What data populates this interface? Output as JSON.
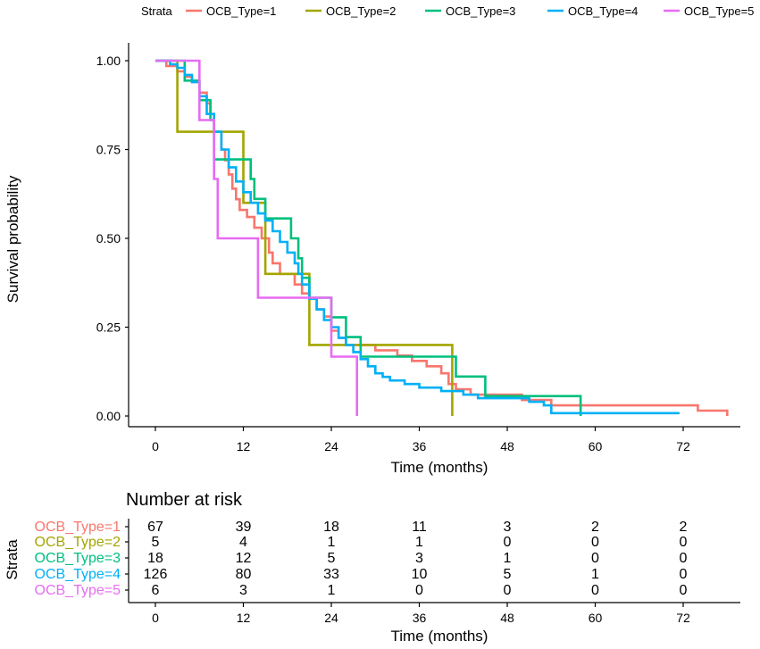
{
  "chart_data": {
    "type": "line",
    "subtype": "kaplan-meier",
    "title": "",
    "legend": {
      "title": "Strata",
      "position": "top",
      "entries": [
        "OCB_Type=1",
        "OCB_Type=2",
        "OCB_Type=3",
        "OCB_Type=4",
        "OCB_Type=5"
      ]
    },
    "xlabel": "Time (months)",
    "ylabel": "Survival probability",
    "xlim": [
      0,
      78
    ],
    "ylim": [
      0,
      1
    ],
    "xticks": [
      "0",
      "12",
      "24",
      "36",
      "48",
      "60",
      "72"
    ],
    "yticks": [
      "0.00",
      "0.25",
      "0.50",
      "0.75",
      "1.00"
    ],
    "series": [
      {
        "name": "OCB_Type=1",
        "color": "#F8766D",
        "points": [
          [
            0,
            1.0
          ],
          [
            1.5,
            1.0
          ],
          [
            1.5,
            0.985
          ],
          [
            3,
            0.985
          ],
          [
            3,
            0.97
          ],
          [
            4,
            0.97
          ],
          [
            4,
            0.955
          ],
          [
            5,
            0.955
          ],
          [
            5,
            0.94
          ],
          [
            6,
            0.94
          ],
          [
            6,
            0.91
          ],
          [
            7,
            0.91
          ],
          [
            7,
            0.88
          ],
          [
            7.5,
            0.88
          ],
          [
            7.5,
            0.85
          ],
          [
            8,
            0.85
          ],
          [
            8,
            0.8
          ],
          [
            9,
            0.8
          ],
          [
            9,
            0.75
          ],
          [
            9.5,
            0.75
          ],
          [
            9.5,
            0.72
          ],
          [
            10,
            0.72
          ],
          [
            10,
            0.68
          ],
          [
            10.5,
            0.68
          ],
          [
            10.5,
            0.64
          ],
          [
            11,
            0.64
          ],
          [
            11,
            0.61
          ],
          [
            11.5,
            0.61
          ],
          [
            11.5,
            0.58
          ],
          [
            12.5,
            0.58
          ],
          [
            12.5,
            0.56
          ],
          [
            13.5,
            0.56
          ],
          [
            13.5,
            0.53
          ],
          [
            14.5,
            0.53
          ],
          [
            14.5,
            0.5
          ],
          [
            15.5,
            0.5
          ],
          [
            15.5,
            0.46
          ],
          [
            16,
            0.46
          ],
          [
            16,
            0.43
          ],
          [
            17,
            0.43
          ],
          [
            17,
            0.4
          ],
          [
            19,
            0.4
          ],
          [
            19,
            0.37
          ],
          [
            20,
            0.37
          ],
          [
            20,
            0.345
          ],
          [
            21,
            0.345
          ],
          [
            21,
            0.33
          ],
          [
            22,
            0.33
          ],
          [
            22,
            0.3
          ],
          [
            23,
            0.3
          ],
          [
            23,
            0.28
          ],
          [
            24,
            0.28
          ],
          [
            24,
            0.24
          ],
          [
            25,
            0.24
          ],
          [
            25,
            0.22
          ],
          [
            26,
            0.22
          ],
          [
            26,
            0.2
          ],
          [
            30,
            0.2
          ],
          [
            30,
            0.185
          ],
          [
            33,
            0.185
          ],
          [
            33,
            0.17
          ],
          [
            35,
            0.17
          ],
          [
            35,
            0.155
          ],
          [
            37,
            0.155
          ],
          [
            37,
            0.14
          ],
          [
            39,
            0.14
          ],
          [
            39,
            0.12
          ],
          [
            40,
            0.12
          ],
          [
            40,
            0.09
          ],
          [
            41,
            0.09
          ],
          [
            41,
            0.075
          ],
          [
            43,
            0.075
          ],
          [
            43,
            0.06
          ],
          [
            50,
            0.06
          ],
          [
            50,
            0.045
          ],
          [
            54,
            0.045
          ],
          [
            54,
            0.03
          ],
          [
            72,
            0.03
          ],
          [
            72,
            0.03
          ],
          [
            74,
            0.03
          ],
          [
            74,
            0.015
          ],
          [
            78,
            0.015
          ],
          [
            78,
            0.0
          ]
        ]
      },
      {
        "name": "OCB_Type=2",
        "color": "#A3A500",
        "points": [
          [
            0,
            1.0
          ],
          [
            3,
            1.0
          ],
          [
            3,
            0.8
          ],
          [
            12,
            0.8
          ],
          [
            12,
            0.6
          ],
          [
            15,
            0.6
          ],
          [
            15,
            0.4
          ],
          [
            18,
            0.4
          ],
          [
            18,
            0.4
          ],
          [
            21,
            0.4
          ],
          [
            21,
            0.2
          ],
          [
            40.5,
            0.2
          ],
          [
            40.5,
            0.0
          ]
        ]
      },
      {
        "name": "OCB_Type=3",
        "color": "#00BF7D",
        "points": [
          [
            0,
            1.0
          ],
          [
            4,
            1.0
          ],
          [
            4,
            0.944
          ],
          [
            6,
            0.944
          ],
          [
            6,
            0.889
          ],
          [
            7.5,
            0.889
          ],
          [
            7.5,
            0.833
          ],
          [
            8,
            0.833
          ],
          [
            8,
            0.722
          ],
          [
            13,
            0.722
          ],
          [
            13,
            0.667
          ],
          [
            13.5,
            0.667
          ],
          [
            13.5,
            0.611
          ],
          [
            15,
            0.611
          ],
          [
            15,
            0.556
          ],
          [
            18.5,
            0.556
          ],
          [
            18.5,
            0.5
          ],
          [
            19.5,
            0.5
          ],
          [
            19.5,
            0.444
          ],
          [
            20,
            0.444
          ],
          [
            20,
            0.389
          ],
          [
            21,
            0.389
          ],
          [
            21,
            0.333
          ],
          [
            24,
            0.333
          ],
          [
            24,
            0.278
          ],
          [
            26,
            0.278
          ],
          [
            26,
            0.222
          ],
          [
            28,
            0.222
          ],
          [
            28,
            0.167
          ],
          [
            41,
            0.167
          ],
          [
            41,
            0.111
          ],
          [
            45,
            0.111
          ],
          [
            45,
            0.056
          ],
          [
            58,
            0.056
          ],
          [
            58,
            0.0
          ]
        ]
      },
      {
        "name": "OCB_Type=4",
        "color": "#00B0F6",
        "points": [
          [
            0,
            1.0
          ],
          [
            2,
            1.0
          ],
          [
            2,
            0.99
          ],
          [
            3,
            0.99
          ],
          [
            3,
            0.98
          ],
          [
            4,
            0.98
          ],
          [
            4,
            0.96
          ],
          [
            5,
            0.96
          ],
          [
            5,
            0.94
          ],
          [
            6,
            0.94
          ],
          [
            6,
            0.9
          ],
          [
            7,
            0.9
          ],
          [
            7,
            0.85
          ],
          [
            8,
            0.85
          ],
          [
            8,
            0.8
          ],
          [
            9,
            0.8
          ],
          [
            9,
            0.75
          ],
          [
            10,
            0.75
          ],
          [
            10,
            0.7
          ],
          [
            11,
            0.7
          ],
          [
            11,
            0.66
          ],
          [
            12,
            0.66
          ],
          [
            12,
            0.63
          ],
          [
            13,
            0.63
          ],
          [
            13,
            0.6
          ],
          [
            14,
            0.6
          ],
          [
            14,
            0.57
          ],
          [
            15,
            0.57
          ],
          [
            15,
            0.55
          ],
          [
            16,
            0.55
          ],
          [
            16,
            0.52
          ],
          [
            17,
            0.52
          ],
          [
            17,
            0.49
          ],
          [
            18,
            0.49
          ],
          [
            18,
            0.46
          ],
          [
            19,
            0.46
          ],
          [
            19,
            0.43
          ],
          [
            19.5,
            0.43
          ],
          [
            19.5,
            0.4
          ],
          [
            20,
            0.4
          ],
          [
            20,
            0.37
          ],
          [
            21,
            0.37
          ],
          [
            21,
            0.33
          ],
          [
            22,
            0.33
          ],
          [
            22,
            0.3
          ],
          [
            23,
            0.3
          ],
          [
            23,
            0.27
          ],
          [
            24,
            0.27
          ],
          [
            24,
            0.25
          ],
          [
            25,
            0.25
          ],
          [
            25,
            0.22
          ],
          [
            26,
            0.22
          ],
          [
            26,
            0.2
          ],
          [
            27,
            0.2
          ],
          [
            27,
            0.18
          ],
          [
            28,
            0.18
          ],
          [
            28,
            0.16
          ],
          [
            29,
            0.16
          ],
          [
            29,
            0.14
          ],
          [
            30,
            0.14
          ],
          [
            30,
            0.12
          ],
          [
            31,
            0.12
          ],
          [
            31,
            0.11
          ],
          [
            32,
            0.11
          ],
          [
            32,
            0.1
          ],
          [
            34,
            0.1
          ],
          [
            34,
            0.09
          ],
          [
            36,
            0.09
          ],
          [
            36,
            0.08
          ],
          [
            39,
            0.08
          ],
          [
            39,
            0.07
          ],
          [
            42,
            0.07
          ],
          [
            42,
            0.06
          ],
          [
            44,
            0.06
          ],
          [
            44,
            0.05
          ],
          [
            51,
            0.05
          ],
          [
            51,
            0.04
          ],
          [
            53,
            0.04
          ],
          [
            53,
            0.03
          ],
          [
            54,
            0.03
          ],
          [
            54,
            0.008
          ],
          [
            71.5,
            0.008
          ]
        ]
      },
      {
        "name": "OCB_Type=5",
        "color": "#E76BF3",
        "points": [
          [
            0,
            1.0
          ],
          [
            6,
            1.0
          ],
          [
            6,
            0.833
          ],
          [
            8,
            0.833
          ],
          [
            8,
            0.667
          ],
          [
            8.5,
            0.667
          ],
          [
            8.5,
            0.5
          ],
          [
            12,
            0.5
          ],
          [
            12,
            0.5
          ],
          [
            14,
            0.5
          ],
          [
            14,
            0.333
          ],
          [
            24,
            0.333
          ],
          [
            24,
            0.167
          ],
          [
            27.5,
            0.167
          ],
          [
            27.5,
            0.0
          ]
        ]
      }
    ]
  },
  "risk_table": {
    "title": "Number at risk",
    "ylabel": "Strata",
    "xlabel": "Time (months)",
    "times": [
      "0",
      "12",
      "24",
      "36",
      "48",
      "60",
      "72"
    ],
    "rows": [
      {
        "label": "OCB_Type=1",
        "color": "#F8766D",
        "values": [
          "67",
          "39",
          "18",
          "11",
          "3",
          "2",
          "2"
        ]
      },
      {
        "label": "OCB_Type=2",
        "color": "#A3A500",
        "values": [
          "5",
          "4",
          "1",
          "1",
          "0",
          "0",
          "0"
        ]
      },
      {
        "label": "OCB_Type=3",
        "color": "#00BF7D",
        "values": [
          "18",
          "12",
          "5",
          "3",
          "1",
          "0",
          "0"
        ]
      },
      {
        "label": "OCB_Type=4",
        "color": "#00B0F6",
        "values": [
          "126",
          "80",
          "33",
          "10",
          "5",
          "1",
          "0"
        ]
      },
      {
        "label": "OCB_Type=5",
        "color": "#E76BF3",
        "values": [
          "6",
          "3",
          "1",
          "0",
          "0",
          "0",
          "0"
        ]
      }
    ]
  }
}
